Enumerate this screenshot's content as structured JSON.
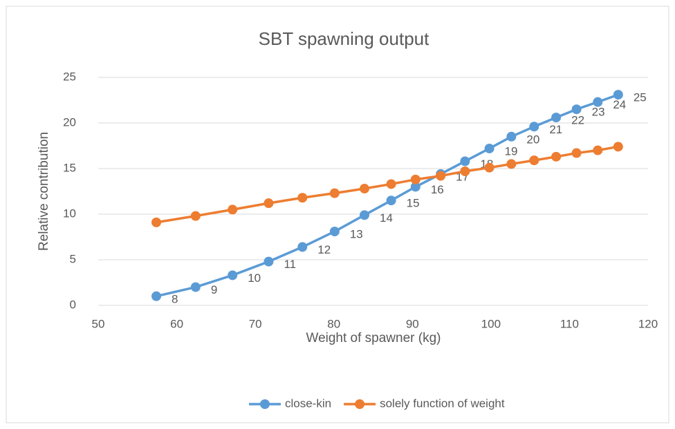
{
  "chart_data": {
    "type": "line",
    "title": "SBT spawning output",
    "x_label": "Weight of spawner (kg)",
    "y_label": "Relative contribution",
    "x": [
      57.4,
      62.4,
      67.1,
      71.7,
      76.0,
      80.1,
      83.9,
      87.3,
      90.4,
      93.6,
      96.7,
      99.8,
      102.6,
      105.5,
      108.3,
      110.9,
      113.6,
      116.2
    ],
    "series": [
      {
        "name": "close-kin",
        "color": "#5b9bd5",
        "values": [
          1.0,
          2.0,
          3.3,
          4.8,
          6.4,
          8.1,
          9.9,
          11.5,
          13.0,
          14.4,
          15.8,
          17.2,
          18.5,
          19.6,
          20.6,
          21.5,
          22.3,
          23.1
        ],
        "point_labels": [
          8,
          9,
          10,
          11,
          12,
          13,
          14,
          15,
          16,
          17,
          18,
          19,
          20,
          21,
          22,
          23,
          24,
          25
        ]
      },
      {
        "name": "solely function of weight",
        "color": "#ed7d31",
        "values": [
          9.1,
          9.8,
          10.5,
          11.2,
          11.8,
          12.3,
          12.8,
          13.3,
          13.8,
          14.2,
          14.7,
          15.1,
          15.5,
          15.9,
          16.3,
          16.7,
          17.0,
          17.4
        ]
      }
    ],
    "xlim": [
      50,
      120
    ],
    "xticks": [
      50,
      60,
      70,
      80,
      90,
      100,
      110,
      120
    ],
    "ylim": [
      0,
      25
    ],
    "yticks": [
      0,
      5,
      10,
      15,
      20,
      25
    ],
    "grid": true,
    "legend": "bottom"
  }
}
